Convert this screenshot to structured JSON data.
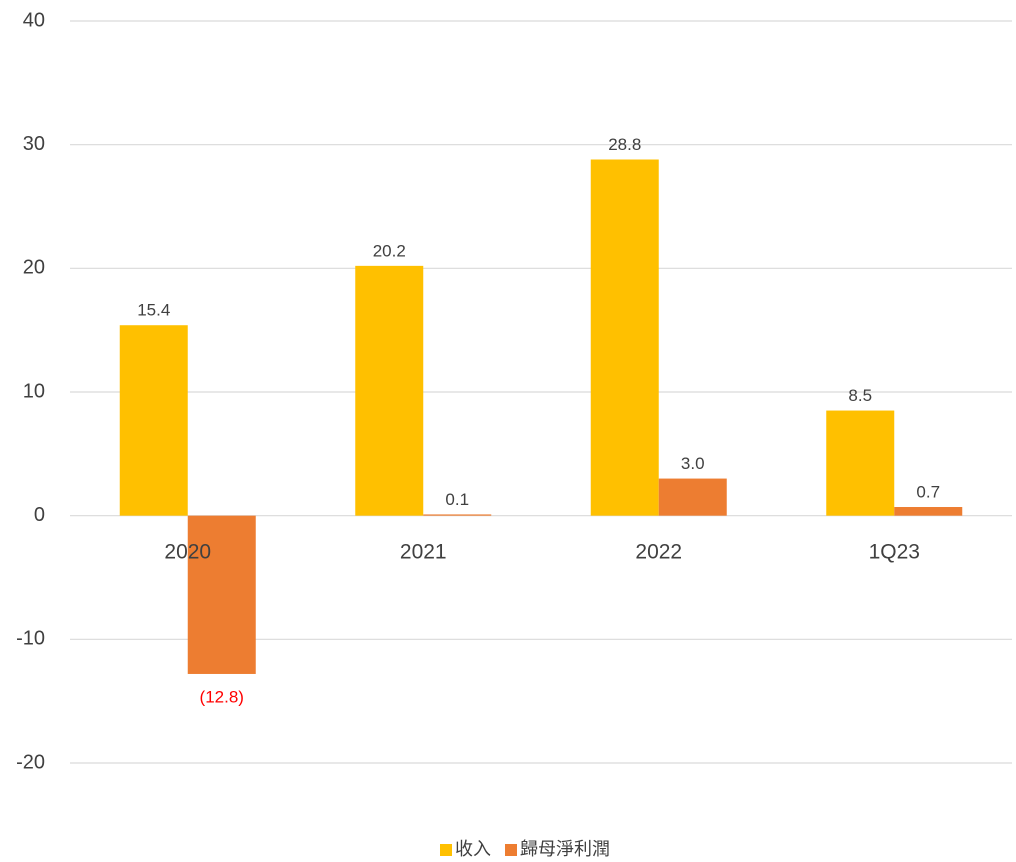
{
  "chart_data": {
    "type": "bar",
    "categories": [
      "2020",
      "2021",
      "2022",
      "1Q23"
    ],
    "series": [
      {
        "name": "收入",
        "color": "#FFC000",
        "values": [
          15.4,
          20.2,
          28.8,
          8.5
        ],
        "value_labels": [
          "15.4",
          "20.2",
          "28.8",
          "8.5"
        ]
      },
      {
        "name": "歸母淨利潤",
        "color": "#ED7D31",
        "values": [
          -12.8,
          0.1,
          3.0,
          0.7
        ],
        "value_labels": [
          "(12.8)",
          "0.1",
          "3.0",
          "0.7"
        ]
      }
    ],
    "negative_label_color": "#FF0000",
    "ylim": [
      -20,
      40
    ],
    "yticks": [
      -20,
      -10,
      0,
      10,
      20,
      30,
      40
    ],
    "grid": true,
    "legend": "bottom"
  }
}
